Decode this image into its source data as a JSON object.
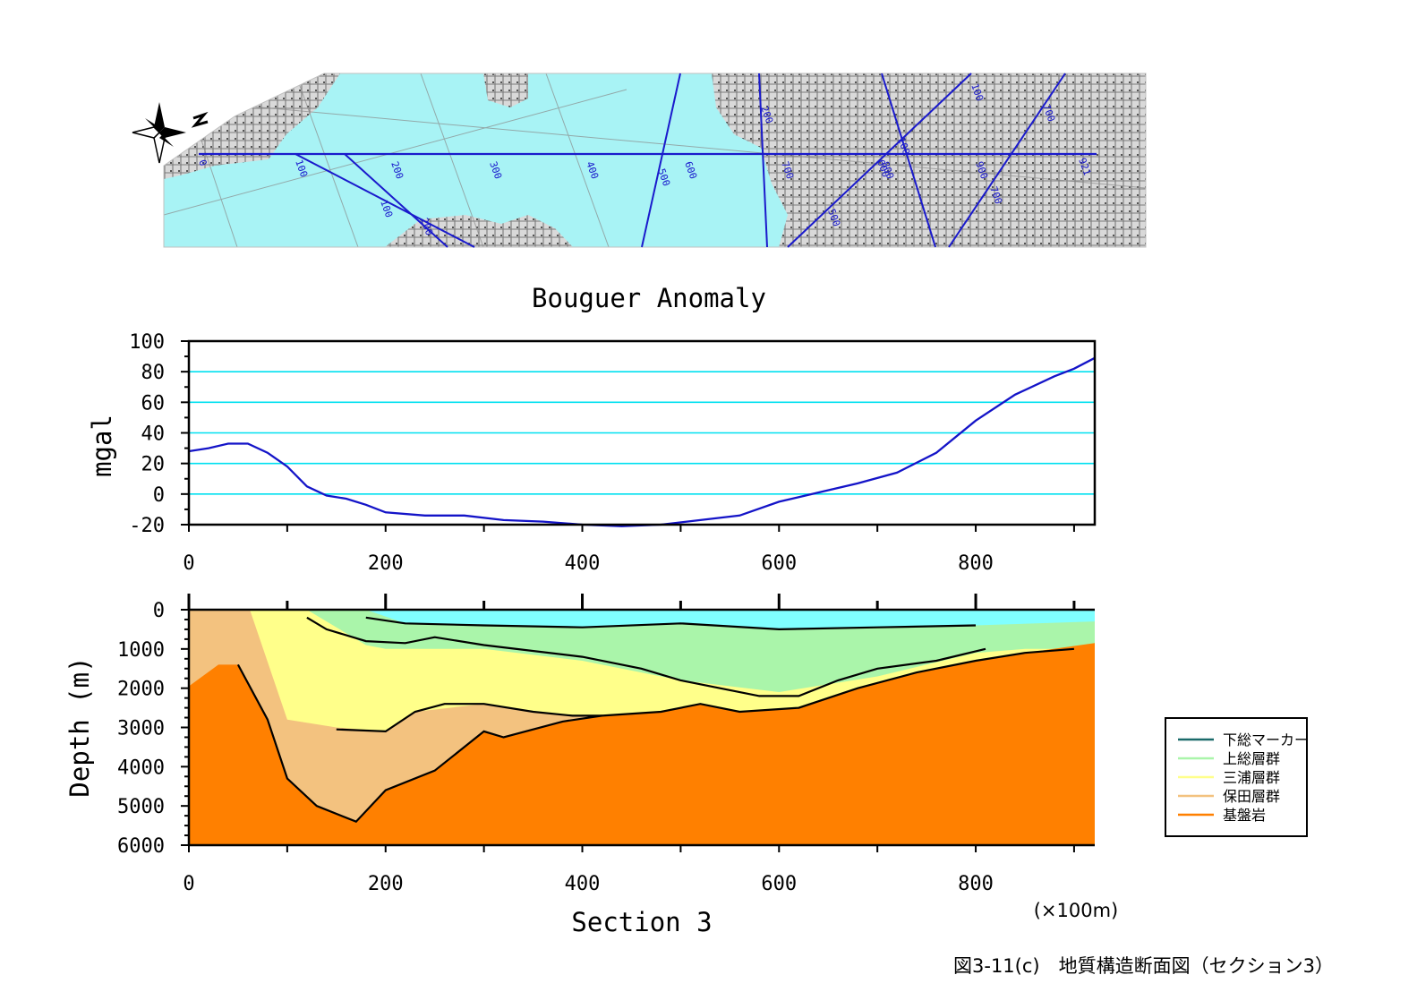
{
  "map": {
    "line_color": "#1a1acc",
    "main_line_labels": [
      "0",
      "100",
      "200",
      "300",
      "400",
      "500",
      "600",
      "700",
      "800",
      "900",
      "921"
    ],
    "cross_line_labels": [
      "100",
      "200",
      "100",
      "200",
      "500",
      "600",
      "700",
      "700",
      "100"
    ]
  },
  "caption": "図3-11(c)　地質構造断面図（セクション3）",
  "unit_note": "(×100m)",
  "chart_data": [
    {
      "type": "line",
      "title": "Bouguer Anomaly",
      "ylabel": "mgal",
      "xlabel": "",
      "xlim": [
        0,
        921
      ],
      "ylim": [
        -20,
        100
      ],
      "xticks": [
        0,
        200,
        400,
        600,
        800
      ],
      "yticks": [
        -20,
        0,
        20,
        40,
        60,
        80,
        100
      ],
      "grid": true,
      "grid_color": "#00e0f0",
      "line_color": "#1414c8",
      "series": [
        {
          "x": [
            0,
            20,
            40,
            60,
            80,
            100,
            120,
            140,
            160,
            180,
            200,
            240,
            280,
            320,
            360,
            400,
            440,
            480,
            520,
            560,
            600,
            640,
            680,
            720,
            760,
            800,
            840,
            880,
            900,
            921
          ],
          "y": [
            28,
            30,
            33,
            33,
            27,
            18,
            5,
            -1,
            -3,
            -7,
            -12,
            -14,
            -14,
            -17,
            -18,
            -20,
            -21,
            -20,
            -17,
            -14,
            -5,
            1,
            7,
            14,
            27,
            48,
            65,
            77,
            82,
            89
          ]
        }
      ]
    },
    {
      "type": "area",
      "xlabel": "Section 3",
      "ylabel": "Depth (m)",
      "xlim": [
        0,
        921
      ],
      "ylim": [
        6000,
        0
      ],
      "xticks": [
        0,
        200,
        400,
        600,
        800
      ],
      "yticks": [
        0,
        1000,
        2000,
        3000,
        4000,
        5000,
        6000
      ],
      "legend": "right",
      "water_color": "#80ffff",
      "legend_items": [
        {
          "name": "下総マーカー",
          "color": "#1a6a6a"
        },
        {
          "name": "上総層群",
          "color": "#aaf5aa"
        },
        {
          "name": "三浦層群",
          "color": "#ffff8a"
        },
        {
          "name": "保田層群",
          "color": "#f3c27f"
        },
        {
          "name": "基盤岩",
          "color": "#ff8000"
        }
      ],
      "layers": [
        {
          "name": "上総層群",
          "points": [
            [
              120,
              0
            ],
            [
              921,
              0
            ],
            [
              921,
              6000
            ],
            [
              120,
              6000
            ]
          ]
        },
        {
          "name": "三浦層群",
          "points": [
            [
              62,
              0
            ],
            [
              120,
              0
            ],
            [
              140,
              300
            ],
            [
              180,
              900
            ],
            [
              200,
              1000
            ],
            [
              300,
              1000
            ],
            [
              400,
              1300
            ],
            [
              500,
              1800
            ],
            [
              600,
              2100
            ],
            [
              700,
              1700
            ],
            [
              800,
              1100
            ],
            [
              850,
              1000
            ],
            [
              921,
              1000
            ],
            [
              921,
              6000
            ],
            [
              62,
              6000
            ]
          ]
        },
        {
          "name": "保田層群",
          "points": [
            [
              0,
              0
            ],
            [
              62,
              0
            ],
            [
              100,
              2800
            ],
            [
              150,
              3000
            ],
            [
              200,
              3100
            ],
            [
              230,
              2600
            ],
            [
              300,
              2400
            ],
            [
              350,
              2600
            ],
            [
              400,
              2700
            ],
            [
              450,
              2700
            ],
            [
              921,
              2700
            ],
            [
              921,
              6000
            ],
            [
              0,
              6000
            ]
          ]
        },
        {
          "name": "基盤岩",
          "points": [
            [
              0,
              1950
            ],
            [
              30,
              1400
            ],
            [
              50,
              1400
            ],
            [
              80,
              2800
            ],
            [
              100,
              4300
            ],
            [
              130,
              5000
            ],
            [
              170,
              5400
            ],
            [
              200,
              4600
            ],
            [
              250,
              4100
            ],
            [
              300,
              3100
            ],
            [
              320,
              3250
            ],
            [
              380,
              2850
            ],
            [
              420,
              2700
            ],
            [
              480,
              2600
            ],
            [
              520,
              2400
            ],
            [
              560,
              2600
            ],
            [
              620,
              2500
            ],
            [
              680,
              2000
            ],
            [
              740,
              1600
            ],
            [
              800,
              1300
            ],
            [
              850,
              1100
            ],
            [
              921,
              850
            ],
            [
              921,
              6000
            ],
            [
              0,
              6000
            ]
          ]
        }
      ],
      "water": [
        [
          180,
          0
        ],
        [
          921,
          0
        ],
        [
          921,
          300
        ],
        [
          800,
          400
        ],
        [
          600,
          500
        ],
        [
          500,
          350
        ],
        [
          400,
          450
        ],
        [
          300,
          400
        ],
        [
          220,
          350
        ]
      ],
      "boundaries": [
        [
          [
            180,
            200
          ],
          [
            220,
            350
          ],
          [
            300,
            400
          ],
          [
            400,
            450
          ],
          [
            500,
            350
          ],
          [
            600,
            500
          ],
          [
            700,
            450
          ],
          [
            800,
            400
          ]
        ],
        [
          [
            120,
            200
          ],
          [
            140,
            500
          ],
          [
            180,
            800
          ],
          [
            220,
            850
          ],
          [
            250,
            700
          ],
          [
            300,
            900
          ],
          [
            400,
            1200
          ],
          [
            460,
            1500
          ],
          [
            500,
            1800
          ],
          [
            540,
            2000
          ],
          [
            580,
            2200
          ],
          [
            620,
            2200
          ],
          [
            660,
            1800
          ],
          [
            700,
            1500
          ],
          [
            760,
            1300
          ],
          [
            810,
            1000
          ]
        ],
        [
          [
            150,
            3050
          ],
          [
            200,
            3100
          ],
          [
            230,
            2600
          ],
          [
            260,
            2400
          ],
          [
            300,
            2400
          ],
          [
            350,
            2600
          ],
          [
            390,
            2700
          ],
          [
            420,
            2700
          ]
        ],
        [
          [
            50,
            1400
          ],
          [
            80,
            2800
          ],
          [
            100,
            4300
          ],
          [
            130,
            5000
          ],
          [
            170,
            5400
          ],
          [
            200,
            4600
          ],
          [
            250,
            4100
          ],
          [
            300,
            3100
          ],
          [
            320,
            3250
          ],
          [
            380,
            2850
          ],
          [
            420,
            2700
          ],
          [
            480,
            2600
          ],
          [
            520,
            2400
          ],
          [
            560,
            2600
          ],
          [
            620,
            2500
          ],
          [
            680,
            2000
          ],
          [
            740,
            1600
          ],
          [
            800,
            1300
          ],
          [
            850,
            1100
          ],
          [
            900,
            1000
          ]
        ]
      ]
    }
  ]
}
